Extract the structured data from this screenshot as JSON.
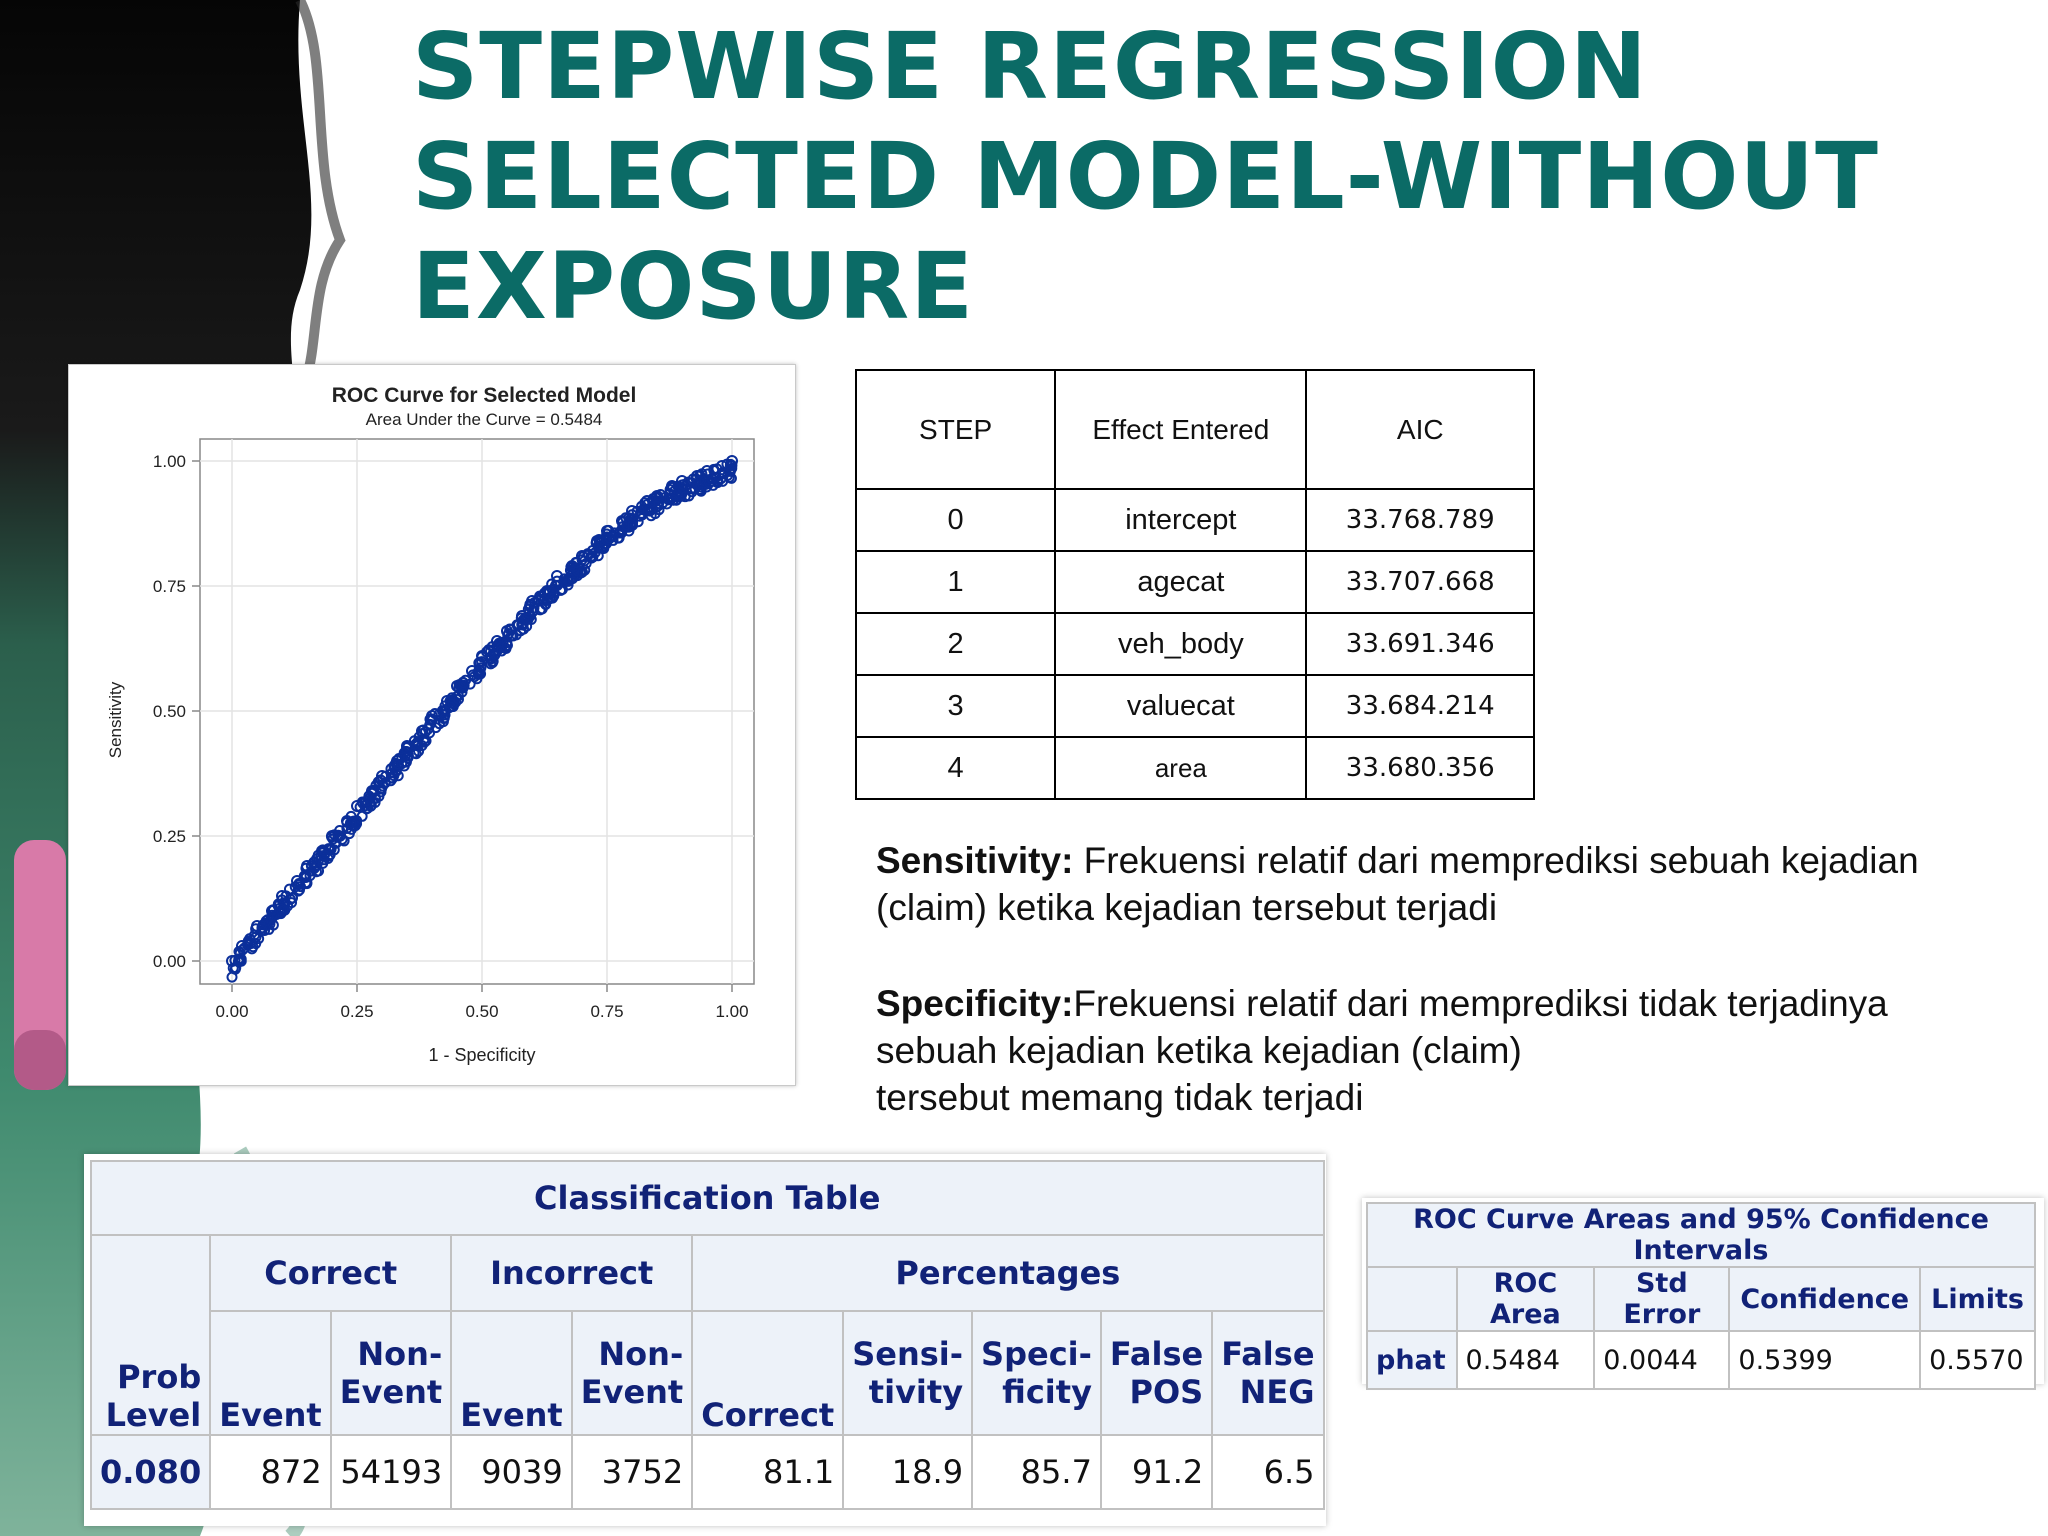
{
  "slide": {
    "title_lines": [
      "STEPWISE REGRESSION",
      "SELECTED MODEL-WITHOUT",
      "EXPOSURE"
    ],
    "colors": {
      "title": "#0b6b66",
      "roc_points": "#0b2f9a",
      "sas_header_text": "#112277",
      "sas_header_bg": "#edf2f9"
    }
  },
  "chart_data": {
    "type": "scatter",
    "title": "ROC Curve for Selected Model",
    "subtitle": "Area Under the Curve = 0.5484",
    "xlabel": "1 - Specificity",
    "ylabel": "Sensitivity",
    "xlim": [
      0,
      1
    ],
    "ylim": [
      0,
      1
    ],
    "x_ticks": [
      "0.00",
      "0.25",
      "0.50",
      "0.75",
      "1.00"
    ],
    "y_ticks": [
      "0.00",
      "0.25",
      "0.50",
      "0.75",
      "1.00"
    ],
    "grid": true,
    "series": [
      {
        "x": [
          0.0,
          0.02,
          0.05,
          0.08,
          0.1,
          0.13,
          0.15,
          0.18,
          0.2,
          0.23,
          0.25,
          0.28,
          0.3,
          0.33,
          0.35,
          0.38,
          0.4,
          0.43,
          0.45,
          0.48,
          0.5,
          0.53,
          0.55,
          0.58,
          0.6,
          0.63,
          0.65,
          0.68,
          0.7,
          0.73,
          0.75,
          0.78,
          0.8,
          0.83,
          0.85,
          0.88,
          0.9,
          0.93,
          0.95,
          0.98,
          1.0
        ],
        "y": [
          0.0,
          0.03,
          0.07,
          0.1,
          0.13,
          0.16,
          0.19,
          0.22,
          0.25,
          0.28,
          0.31,
          0.34,
          0.37,
          0.4,
          0.43,
          0.46,
          0.49,
          0.52,
          0.55,
          0.58,
          0.61,
          0.64,
          0.66,
          0.69,
          0.72,
          0.74,
          0.77,
          0.79,
          0.81,
          0.84,
          0.86,
          0.88,
          0.9,
          0.92,
          0.93,
          0.95,
          0.96,
          0.97,
          0.98,
          0.99,
          1.0
        ]
      }
    ]
  },
  "steps_table": {
    "headers": [
      "STEP",
      "Effect Entered",
      "AIC"
    ],
    "rows": [
      [
        "0",
        "intercept",
        "33.768.789"
      ],
      [
        "1",
        "agecat",
        "33.707.668"
      ],
      [
        "2",
        "veh_body",
        "33.691.346"
      ],
      [
        "3",
        "valuecat",
        "33.684.214"
      ],
      [
        "4",
        "area",
        "33.680.356"
      ]
    ]
  },
  "definitions": {
    "sensitivity_term": "Sensitivity:",
    "sensitivity_line1": " Frekuensi relatif dari memprediksi sebuah kejadian",
    "sensitivity_line2": "(claim) ketika kejadian tersebut terjadi",
    "specificity_term": "Specificity:",
    "specificity_line1": "Frekuensi relatif dari memprediksi tidak terjadinya",
    "specificity_line2": "sebuah kejadian ketika kejadian (claim)",
    "specificity_line3": "tersebut  memang tidak terjadi"
  },
  "classification_table": {
    "title": "Classification Table",
    "groups": {
      "correct": "Correct",
      "incorrect": "Incorrect",
      "percentages": "Percentages"
    },
    "columns": {
      "prob_level": [
        "Prob",
        "Level"
      ],
      "correct_event": "Event",
      "correct_nonevent": [
        "Non-",
        "Event"
      ],
      "incorrect_event": "Event",
      "incorrect_nonevent": [
        "Non-",
        "Event"
      ],
      "pct_correct": "Correct",
      "sensitivity": [
        "Sensi-",
        "tivity"
      ],
      "specificity": [
        "Speci-",
        "ficity"
      ],
      "false_pos": [
        "False",
        "POS"
      ],
      "false_neg": [
        "False",
        "NEG"
      ]
    },
    "row": [
      "0.080",
      "872",
      "54193",
      "9039",
      "3752",
      "81.1",
      "18.9",
      "85.7",
      "91.2",
      "6.5"
    ]
  },
  "roc_ci_table": {
    "title": "ROC Curve Areas and 95% Confidence Intervals",
    "headers": [
      "ROC Area",
      "Std Error",
      "Confidence",
      "Limits"
    ],
    "row_label": "phat",
    "row": [
      "0.5484",
      "0.0044",
      "0.5399",
      "0.5570"
    ]
  }
}
